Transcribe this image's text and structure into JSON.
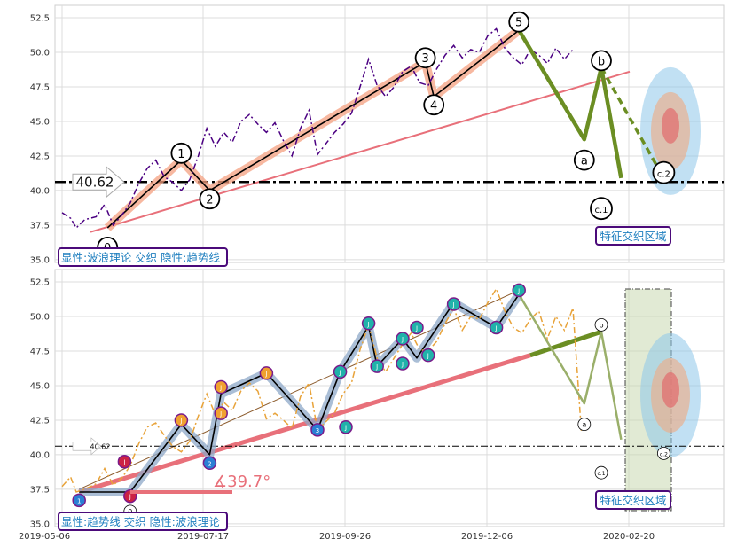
{
  "chart_data": [
    {
      "type": "line",
      "panel": "top",
      "ylim": [
        34.8,
        53.4
      ],
      "yticks": [
        "35.0",
        "37.5",
        "40.0",
        "42.5",
        "45.0",
        "47.5",
        "50.0",
        "52.5"
      ],
      "grid": true,
      "price_series": {
        "name": "",
        "color": "#4b0082",
        "values": [
          [
            0,
            38.4
          ],
          [
            3,
            38.0
          ],
          [
            5,
            37.3
          ],
          [
            8,
            37.9
          ],
          [
            12,
            38.1
          ],
          [
            15,
            39.0
          ],
          [
            18,
            37.5
          ],
          [
            21,
            38.2
          ],
          [
            24,
            39.1
          ],
          [
            27,
            40.5
          ],
          [
            30,
            41.6
          ],
          [
            33,
            42.2
          ],
          [
            36,
            41.0
          ],
          [
            39,
            40.6
          ],
          [
            42,
            40.0
          ],
          [
            45,
            40.8
          ],
          [
            48,
            42.5
          ],
          [
            51,
            44.5
          ],
          [
            54,
            43.2
          ],
          [
            57,
            44.2
          ],
          [
            60,
            43.5
          ],
          [
            63,
            45.0
          ],
          [
            66,
            45.5
          ],
          [
            69,
            44.8
          ],
          [
            72,
            44.2
          ],
          [
            75,
            44.9
          ],
          [
            78,
            43.6
          ],
          [
            81,
            42.5
          ],
          [
            84,
            44.5
          ],
          [
            87,
            45.8
          ],
          [
            90,
            42.6
          ],
          [
            93,
            43.4
          ],
          [
            96,
            44.2
          ],
          [
            99,
            44.8
          ],
          [
            102,
            45.6
          ],
          [
            105,
            47.5
          ],
          [
            108,
            49.5
          ],
          [
            111,
            47.6
          ],
          [
            114,
            46.8
          ],
          [
            117,
            47.5
          ],
          [
            120,
            48.6
          ],
          [
            123,
            49.0
          ],
          [
            126,
            47.8
          ],
          [
            129,
            47.6
          ],
          [
            132,
            48.8
          ],
          [
            135,
            49.8
          ],
          [
            138,
            50.5
          ],
          [
            141,
            49.6
          ],
          [
            144,
            50.2
          ],
          [
            147,
            50.0
          ],
          [
            150,
            51.2
          ],
          [
            153,
            51.7
          ],
          [
            156,
            50.3
          ],
          [
            159,
            49.6
          ],
          [
            162,
            49.1
          ],
          [
            165,
            50.2
          ],
          [
            168,
            49.8
          ],
          [
            171,
            49.2
          ],
          [
            174,
            50.3
          ],
          [
            177,
            49.5
          ],
          [
            180,
            50.2
          ]
        ]
      },
      "wave_labels": [
        {
          "label": "0",
          "x": 16,
          "y": 35.9
        },
        {
          "label": "1",
          "x": 42,
          "y": 42.7
        },
        {
          "label": "2",
          "x": 52,
          "y": 39.4
        },
        {
          "label": "3",
          "x": 128,
          "y": 49.6
        },
        {
          "label": "4",
          "x": 131,
          "y": 46.2
        },
        {
          "label": "5",
          "x": 161,
          "y": 52.2
        },
        {
          "label": "a",
          "x": 184,
          "y": 42.2
        },
        {
          "label": "b",
          "x": 190,
          "y": 49.4
        },
        {
          "label": "c.1",
          "x": 190,
          "y": 38.7
        },
        {
          "label": "c.2",
          "x": 212,
          "y": 41.3
        }
      ],
      "wave_path": [
        [
          16,
          37.3
        ],
        [
          42,
          42.2
        ],
        [
          52,
          40.0
        ],
        [
          128,
          49.3
        ],
        [
          131,
          46.8
        ],
        [
          161,
          51.6
        ]
      ],
      "correction_path": [
        [
          161,
          51.6
        ],
        [
          184,
          43.7
        ],
        [
          190,
          48.9
        ],
        [
          197,
          40.9
        ]
      ],
      "correction_alt_path": [
        [
          190,
          48.9
        ],
        [
          212,
          40.9
        ]
      ],
      "trendline": [
        [
          10,
          37.0
        ],
        [
          200,
          48.6
        ]
      ],
      "horizontal_line": {
        "value": 40.62,
        "label": "40.62"
      },
      "info_box": "显性:波浪理论 交织 隐性:趋势线",
      "region_label": "特征交织区域"
    },
    {
      "type": "line",
      "panel": "bottom",
      "ylim": [
        34.8,
        53.4
      ],
      "yticks": [
        "35.0",
        "37.5",
        "40.0",
        "42.5",
        "45.0",
        "47.5",
        "50.0",
        "52.5"
      ],
      "xticks": [
        "2019-05-06",
        "2019-07-17",
        "2019-09-26",
        "2019-12-06",
        "2020-02-20"
      ],
      "grid": true,
      "price_series": {
        "name": "",
        "color": "#e8a33a",
        "values": [
          [
            0,
            37.7
          ],
          [
            3,
            38.4
          ],
          [
            5,
            37.3
          ],
          [
            8,
            37.5
          ],
          [
            12,
            37.9
          ],
          [
            15,
            39.0
          ],
          [
            18,
            37.8
          ],
          [
            21,
            38.3
          ],
          [
            24,
            39.2
          ],
          [
            27,
            40.8
          ],
          [
            30,
            42.0
          ],
          [
            33,
            42.3
          ],
          [
            36,
            41.4
          ],
          [
            39,
            40.6
          ],
          [
            42,
            40.2
          ],
          [
            45,
            41.0
          ],
          [
            48,
            42.8
          ],
          [
            51,
            44.4
          ],
          [
            54,
            42.9
          ],
          [
            57,
            43.8
          ],
          [
            60,
            43.2
          ],
          [
            63,
            44.6
          ],
          [
            66,
            45.2
          ],
          [
            69,
            44.6
          ],
          [
            72,
            42.6
          ],
          [
            75,
            43.0
          ],
          [
            78,
            42.5
          ],
          [
            81,
            41.9
          ],
          [
            84,
            44.2
          ],
          [
            87,
            45.2
          ],
          [
            90,
            41.8
          ],
          [
            93,
            42.4
          ],
          [
            96,
            43.0
          ],
          [
            99,
            44.4
          ],
          [
            102,
            45.2
          ],
          [
            105,
            47.6
          ],
          [
            108,
            49.4
          ],
          [
            111,
            47.0
          ],
          [
            114,
            46.0
          ],
          [
            117,
            47.0
          ],
          [
            120,
            48.0
          ],
          [
            123,
            48.8
          ],
          [
            126,
            47.6
          ],
          [
            129,
            47.5
          ],
          [
            132,
            48.2
          ],
          [
            135,
            49.5
          ],
          [
            138,
            50.6
          ],
          [
            141,
            49.0
          ],
          [
            144,
            50.0
          ],
          [
            147,
            49.8
          ],
          [
            150,
            51.0
          ],
          [
            153,
            52.0
          ],
          [
            156,
            50.4
          ],
          [
            159,
            49.2
          ],
          [
            162,
            48.8
          ],
          [
            165,
            49.8
          ],
          [
            168,
            50.4
          ],
          [
            171,
            48.4
          ],
          [
            174,
            50.0
          ],
          [
            177,
            49.0
          ],
          [
            180,
            50.6
          ],
          [
            183,
            41.6
          ]
        ]
      },
      "markers": [
        {
          "x": 6,
          "y": 36.7,
          "color": "#2a7fd4",
          "label": "1"
        },
        {
          "x": 22,
          "y": 39.5,
          "color": "#cc2244",
          "label": "J"
        },
        {
          "x": 24,
          "y": 37.0,
          "color": "#cc2244",
          "label": "J"
        },
        {
          "x": 42,
          "y": 42.5,
          "color": "#f0a030",
          "label": "J"
        },
        {
          "x": 52,
          "y": 39.4,
          "color": "#2a7fd4",
          "label": "2"
        },
        {
          "x": 56,
          "y": 44.9,
          "color": "#f0a030",
          "label": "J"
        },
        {
          "x": 56,
          "y": 43.0,
          "color": "#f0a030",
          "label": "J"
        },
        {
          "x": 72,
          "y": 45.9,
          "color": "#f0a030",
          "label": "J"
        },
        {
          "x": 90,
          "y": 41.8,
          "color": "#2a7fd4",
          "label": "3"
        },
        {
          "x": 98,
          "y": 46.0,
          "color": "#20b2aa",
          "label": "J"
        },
        {
          "x": 100,
          "y": 42.0,
          "color": "#20b2aa",
          "label": "J"
        },
        {
          "x": 108,
          "y": 49.5,
          "color": "#20b2aa",
          "label": "J"
        },
        {
          "x": 111,
          "y": 46.4,
          "color": "#20b2aa",
          "label": "J"
        },
        {
          "x": 120,
          "y": 48.4,
          "color": "#20b2aa",
          "label": "J"
        },
        {
          "x": 120,
          "y": 46.6,
          "color": "#20b2aa",
          "label": "J"
        },
        {
          "x": 125,
          "y": 49.2,
          "color": "#20b2aa",
          "label": "J"
        },
        {
          "x": 129,
          "y": 47.2,
          "color": "#20b2aa",
          "label": "J"
        },
        {
          "x": 138,
          "y": 50.9,
          "color": "#20b2aa",
          "label": "J"
        },
        {
          "x": 153,
          "y": 49.2,
          "color": "#20b2aa",
          "label": "J"
        },
        {
          "x": 161,
          "y": 51.9,
          "color": "#20b2aa",
          "label": "J"
        }
      ],
      "wave_labels": [
        {
          "label": "0",
          "x": 24,
          "y": 35.9
        },
        {
          "label": "a",
          "x": 184,
          "y": 42.2
        },
        {
          "label": "b",
          "x": 190,
          "y": 49.4
        },
        {
          "label": "c.1",
          "x": 190,
          "y": 38.7
        },
        {
          "label": "c.2",
          "x": 212,
          "y": 40.1
        }
      ],
      "wave_path": [
        [
          6,
          37.3
        ],
        [
          24,
          37.3
        ],
        [
          42,
          42.2
        ],
        [
          52,
          40.0
        ],
        [
          56,
          44.4
        ],
        [
          72,
          45.9
        ],
        [
          90,
          41.8
        ],
        [
          98,
          46.0
        ],
        [
          108,
          49.3
        ],
        [
          111,
          46.4
        ],
        [
          120,
          48.4
        ],
        [
          125,
          47.0
        ],
        [
          138,
          51.0
        ],
        [
          153,
          49.2
        ],
        [
          161,
          51.6
        ]
      ],
      "upper_channel": [
        [
          6,
          37.5
        ],
        [
          161,
          51.9
        ]
      ],
      "trendline": [
        [
          6,
          37.3
        ],
        [
          165,
          47.2
        ]
      ],
      "trendline_projection": [
        [
          165,
          47.2
        ],
        [
          190,
          48.9
        ]
      ],
      "correction_path": [
        [
          161,
          51.6
        ],
        [
          184,
          43.7
        ],
        [
          190,
          48.9
        ],
        [
          197,
          41.1
        ]
      ],
      "angle_label": "∡39.7°",
      "horizontal_line": {
        "value": 40.62,
        "label": "40.62"
      },
      "info_box": "显性:趋势线 交织 隐性:波浪理论",
      "region_label": "特征交织区域"
    }
  ]
}
